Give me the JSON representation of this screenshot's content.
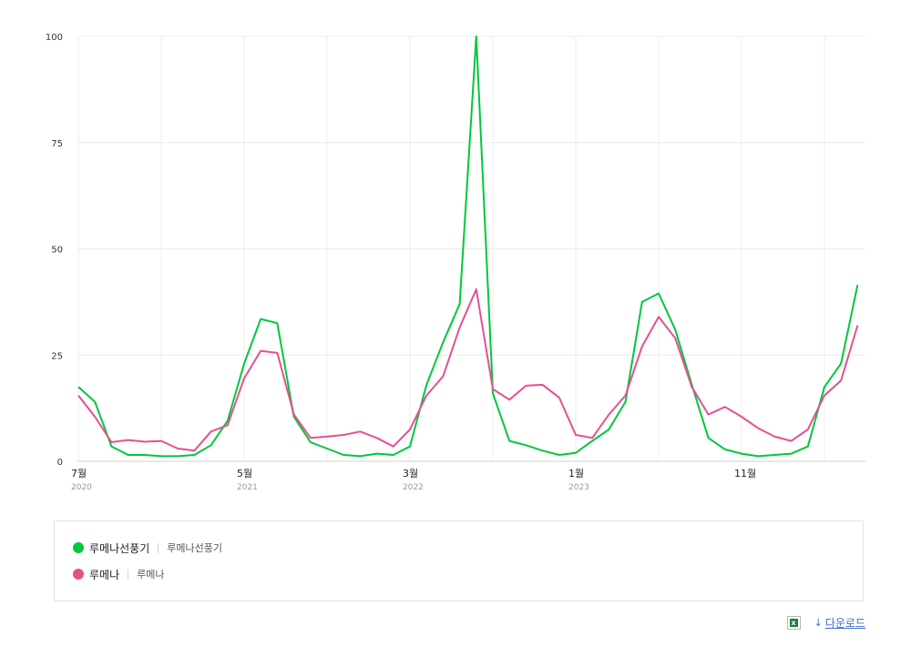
{
  "chart_data": {
    "type": "line",
    "ylim": [
      0,
      100
    ],
    "yticks": [
      0,
      25,
      50,
      75,
      100
    ],
    "grid": true,
    "x_tick_labels": [
      {
        "index": 0,
        "month": "7월",
        "year": "2020"
      },
      {
        "index": 10,
        "month": "5월",
        "year": "2021"
      },
      {
        "index": 20,
        "month": "3월",
        "year": "2022"
      },
      {
        "index": 30,
        "month": "1월",
        "year": "2023"
      },
      {
        "index": 40,
        "month": "11월",
        "year": ""
      }
    ],
    "x_count": 48,
    "series": [
      {
        "name": "루메나선풍기",
        "color": "#00c73c",
        "values": [
          17.5,
          14,
          3.5,
          1.5,
          1.5,
          1.2,
          1.2,
          1.5,
          3.8,
          9.5,
          23,
          33.5,
          32.5,
          10.5,
          4.5,
          3,
          1.5,
          1.2,
          1.8,
          1.5,
          3.5,
          18,
          28,
          37,
          100,
          16,
          4.8,
          3.8,
          2.5,
          1.5,
          2,
          4.8,
          7.5,
          14,
          37.5,
          39.5,
          31,
          18,
          5.5,
          2.8,
          1.8,
          1.2,
          1.5,
          1.8,
          3.5,
          17.5,
          23,
          41.5
        ]
      },
      {
        "name": "루메나",
        "color": "#e4508f",
        "values": [
          15.5,
          10.5,
          4.5,
          5,
          4.6,
          4.8,
          3,
          2.5,
          7,
          8.5,
          19.5,
          26,
          25.5,
          11,
          5.5,
          5.8,
          6.2,
          7,
          5.5,
          3.5,
          7.5,
          15.5,
          20,
          31.5,
          40.5,
          17,
          14.5,
          17.8,
          18,
          15,
          6.2,
          5.5,
          11,
          15.5,
          27,
          34,
          29,
          17.5,
          11,
          12.8,
          10.5,
          7.8,
          5.8,
          4.8,
          7.5,
          15.5,
          19,
          32
        ]
      }
    ]
  },
  "legend": {
    "items": [
      {
        "name": "루메나선풍기",
        "keywords": "루메나선풍기",
        "color": "#00c73c"
      },
      {
        "name": "루메나",
        "keywords": "루메나",
        "color": "#e4508f"
      }
    ]
  },
  "footer": {
    "excel_icon": "excel-icon",
    "download_icon": "download-arrow-icon",
    "download_label": "다운로드"
  }
}
